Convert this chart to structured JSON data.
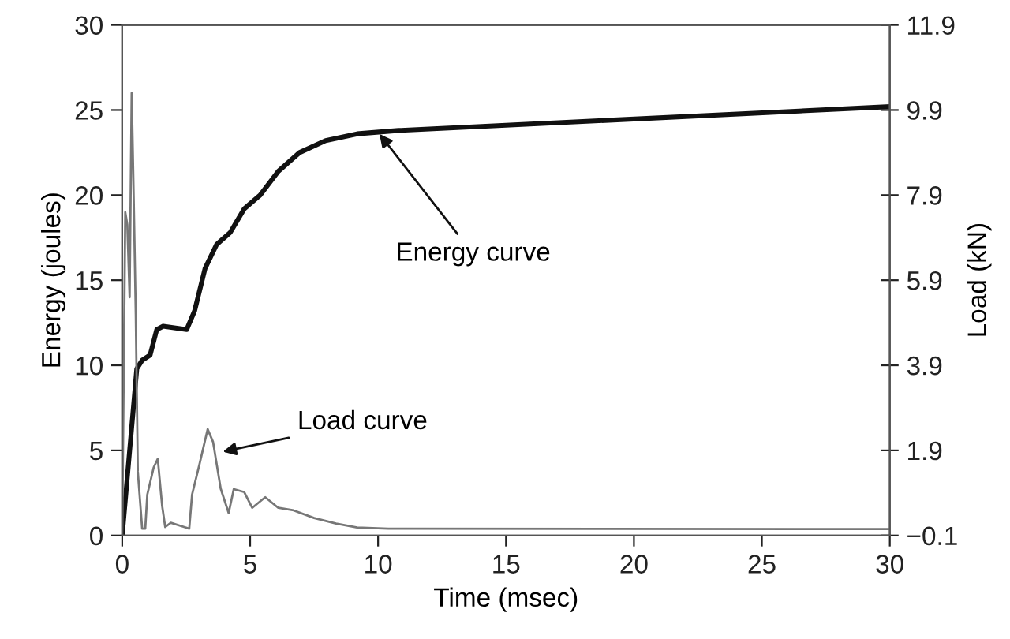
{
  "chart_data": {
    "type": "line",
    "xlabel": "Time (msec)",
    "ylabel": "Energy (joules)",
    "y2label": "Load (kN)",
    "xlim": [
      0,
      30
    ],
    "xticks": [
      0,
      5,
      10,
      15,
      20,
      25,
      30
    ],
    "ylim": [
      0,
      30
    ],
    "yticks": [
      0,
      5,
      10,
      15,
      20,
      25,
      30
    ],
    "y2lim": [
      -0.1,
      11.9
    ],
    "y2ticks": [
      {
        "value": -0.1,
        "label": "−0.1"
      },
      1.9,
      3.9,
      5.9,
      7.9,
      9.9,
      11.9
    ],
    "grid": false,
    "legend": false,
    "marker": "none",
    "line_style": "solid",
    "series": [
      {
        "color": "#111111",
        "x": [
          0,
          0.57,
          0.78,
          1.09,
          1.35,
          1.6,
          2.52,
          2.83,
          3.24,
          3.69,
          4.22,
          4.77,
          5.39,
          6.1,
          6.93,
          7.95,
          9.18,
          10.8,
          30
        ],
        "values": [
          0,
          9.8,
          10.3,
          10.6,
          12.1,
          12.3,
          12.1,
          13.2,
          15.7,
          17.1,
          17.8,
          19.2,
          20.0,
          21.4,
          22.5,
          23.2,
          23.6,
          23.8,
          25.2
        ]
      },
      {
        "color": "#777777",
        "axis": "y2",
        "x": [
          0,
          0.12,
          0.2,
          0.29,
          0.37,
          0.45,
          0.53,
          0.61,
          0.78,
          0.9,
          0.98,
          1.23,
          1.39,
          1.56,
          1.68,
          1.9,
          2.42,
          2.62,
          2.73,
          3.03,
          3.34,
          3.55,
          3.85,
          4.16,
          4.36,
          4.77,
          5.08,
          5.59,
          6.1,
          6.7,
          7.5,
          8.36,
          9.18,
          10.4,
          30
        ],
        "values": [
          -0.1,
          7.5,
          7.2,
          5.5,
          10.3,
          7.8,
          5.1,
          1.4,
          0.06,
          0.06,
          0.86,
          1.5,
          1.7,
          0.6,
          0.1,
          0.2,
          0.1,
          0.06,
          0.86,
          1.6,
          2.4,
          2.1,
          1.0,
          0.43,
          0.99,
          0.92,
          0.55,
          0.8,
          0.55,
          0.49,
          0.31,
          0.18,
          0.09,
          0.06,
          0.05
        ]
      }
    ],
    "annotations": [
      {
        "text": "Energy curve",
        "x": 10,
        "y": 23.7
      },
      {
        "text": "Load curve",
        "x": 3.85,
        "y": 4.9
      }
    ]
  }
}
